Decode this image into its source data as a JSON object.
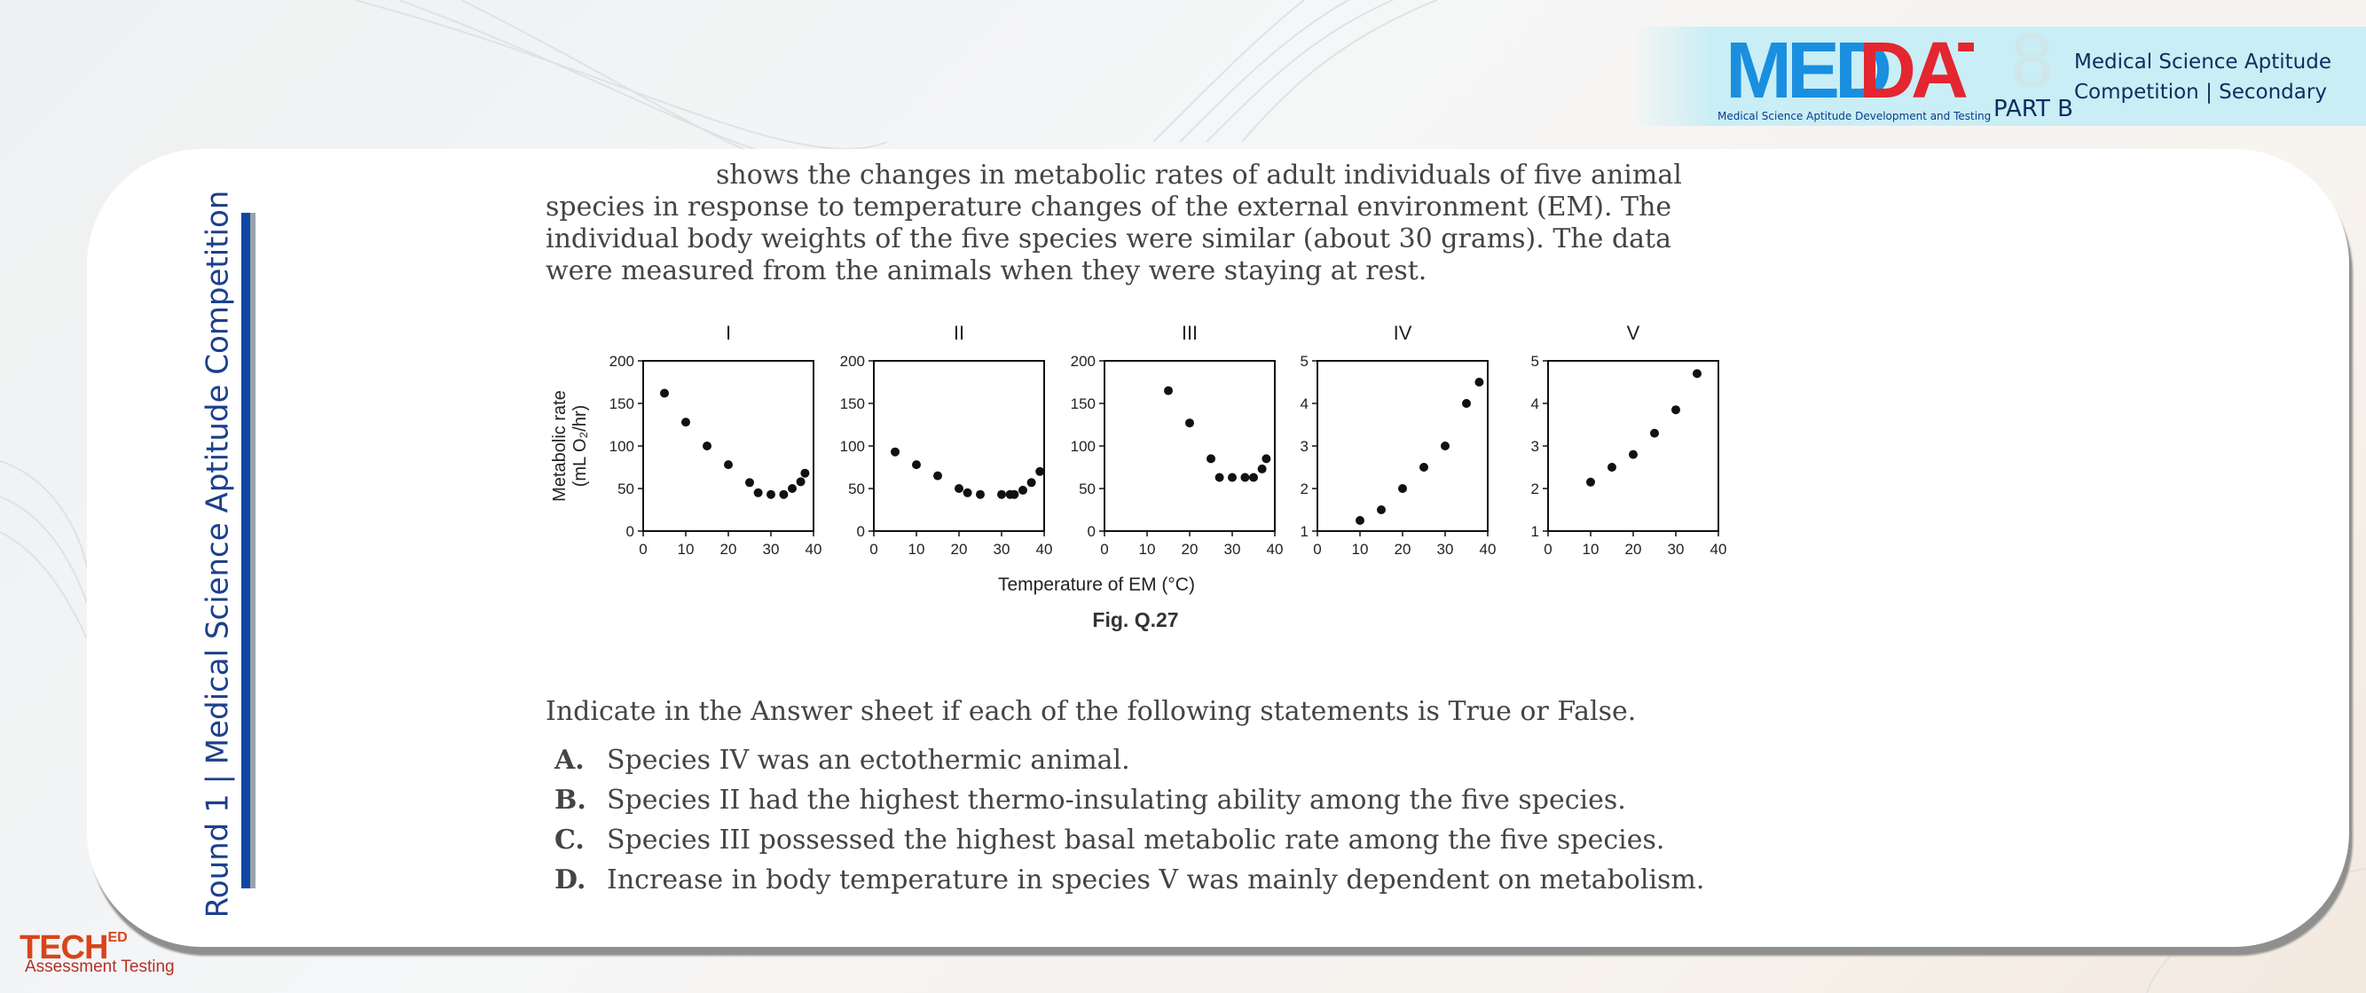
{
  "header": {
    "logo_text": "MEDDAT",
    "logo_subtitle": "Medical Science Aptitude Development and Testing",
    "edition_number": "8",
    "part": "PART B",
    "title_line1": "Medical Science Aptitude",
    "title_line2": "Competition | Secondary"
  },
  "sidebar": {
    "title": "Round 1 | Medical Science Aptitude Competition"
  },
  "question": {
    "intro_line1": "shows the changes in metabolic rates of adult individuals of five animal",
    "intro_line2": "species in response to temperature changes of the external environment (EM). The",
    "intro_line3": "individual body weights of the five species were similar (about 30 grams). The data",
    "intro_line4": "were measured from the animals when they were staying at rest.",
    "instruction": "Indicate in the Answer sheet if each of the following statements is True or False.",
    "statements": [
      {
        "letter": "A.",
        "text": "Species IV was an ectothermic animal."
      },
      {
        "letter": "B.",
        "text": "Species II had the highest thermo-insulating ability among the five species."
      },
      {
        "letter": "C.",
        "text": "Species III possessed the highest basal metabolic rate among the five species."
      },
      {
        "letter": "D.",
        "text": "Increase in body temperature in species V was mainly dependent on metabolism."
      }
    ]
  },
  "figure": {
    "caption": "Fig. Q.27",
    "shared_xlabel": "Temperature of EM (°C)",
    "shared_ylabel_line1": "Metabolic rate",
    "shared_ylabel_line2": "(mL O₂/hr)"
  },
  "chart_data": [
    {
      "type": "scatter",
      "title": "I",
      "xlim": [
        0,
        40
      ],
      "ylim": [
        0,
        200
      ],
      "xticks": [
        0,
        10,
        20,
        30,
        40
      ],
      "yticks": [
        0,
        50,
        100,
        150,
        200
      ],
      "x": [
        5,
        10,
        15,
        20,
        25,
        27,
        30,
        33,
        35,
        37,
        38
      ],
      "y": [
        162,
        128,
        100,
        78,
        57,
        45,
        43,
        43,
        50,
        58,
        68
      ]
    },
    {
      "type": "scatter",
      "title": "II",
      "xlim": [
        0,
        40
      ],
      "ylim": [
        0,
        200
      ],
      "xticks": [
        0,
        10,
        20,
        30,
        40
      ],
      "yticks": [
        0,
        50,
        100,
        150,
        200
      ],
      "x": [
        5,
        10,
        15,
        20,
        22,
        25,
        30,
        32,
        33,
        35,
        37,
        39
      ],
      "y": [
        93,
        78,
        65,
        50,
        45,
        43,
        43,
        43,
        43,
        48,
        57,
        70
      ]
    },
    {
      "type": "scatter",
      "title": "III",
      "xlim": [
        0,
        40
      ],
      "ylim": [
        0,
        200
      ],
      "xticks": [
        0,
        10,
        20,
        30,
        40
      ],
      "yticks": [
        0,
        50,
        100,
        150,
        200
      ],
      "x": [
        15,
        20,
        25,
        27,
        30,
        33,
        35,
        37,
        38
      ],
      "y": [
        165,
        127,
        85,
        63,
        63,
        63,
        63,
        73,
        85
      ]
    },
    {
      "type": "scatter",
      "title": "IV",
      "xlim": [
        0,
        40
      ],
      "ylim": [
        1,
        5
      ],
      "xticks": [
        0,
        10,
        20,
        30,
        40
      ],
      "yticks": [
        1,
        2,
        3,
        4,
        5
      ],
      "x": [
        10,
        15,
        20,
        25,
        30,
        35,
        38
      ],
      "y": [
        1.25,
        1.5,
        2.0,
        2.5,
        3.0,
        4.0,
        4.5
      ]
    },
    {
      "type": "scatter",
      "title": "V",
      "xlim": [
        0,
        40
      ],
      "ylim": [
        1,
        5
      ],
      "xticks": [
        0,
        10,
        20,
        30,
        40
      ],
      "yticks": [
        1,
        2,
        3,
        4,
        5
      ],
      "x": [
        10,
        15,
        20,
        25,
        30,
        35
      ],
      "y": [
        2.15,
        2.5,
        2.8,
        3.3,
        3.85,
        4.7
      ]
    }
  ],
  "footer": {
    "brand_main": "TECH",
    "brand_sup": "ED",
    "brand_sub": "Assessment Testing"
  },
  "colors": {
    "logo_blue": "#1a8fe0",
    "logo_red": "#e3262f",
    "sidebar_blue": "#1d3f8c",
    "brand_orange": "#d8441a"
  }
}
